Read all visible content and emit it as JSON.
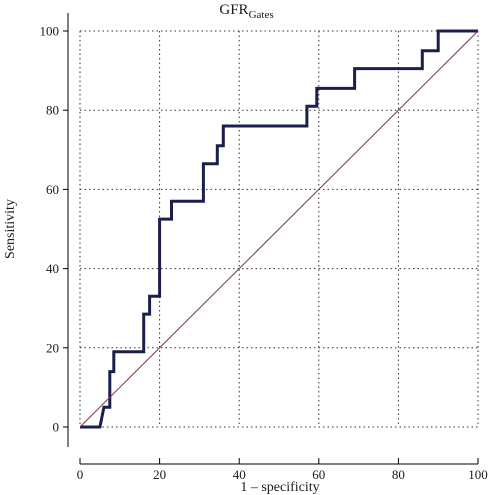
{
  "chart_data": {
    "type": "line",
    "title": "GFR",
    "title_subscript": "Gates",
    "xlabel": "1 – specificity",
    "ylabel": "Sensitivity",
    "xlim": [
      0,
      100
    ],
    "ylim": [
      0,
      100
    ],
    "x_ticks": [
      0,
      20,
      40,
      60,
      80,
      100
    ],
    "y_ticks": [
      0,
      20,
      40,
      60,
      80,
      100
    ],
    "grid": "dotted",
    "colors": {
      "roc": "#1a1f4e",
      "reference": "#7a3b4f",
      "grid": "#333333"
    },
    "series": [
      {
        "type": "step",
        "points": [
          [
            0,
            0
          ],
          [
            5,
            0
          ],
          [
            6,
            5
          ],
          [
            7.5,
            5
          ],
          [
            7.5,
            14
          ],
          [
            8.5,
            14
          ],
          [
            8.5,
            19
          ],
          [
            16,
            19
          ],
          [
            16,
            28.5
          ],
          [
            17.5,
            28.5
          ],
          [
            17.5,
            33
          ],
          [
            20,
            33
          ],
          [
            20,
            52.5
          ],
          [
            23,
            52.5
          ],
          [
            23,
            57
          ],
          [
            31,
            57
          ],
          [
            31,
            66.5
          ],
          [
            34.5,
            66.5
          ],
          [
            34.5,
            71
          ],
          [
            36,
            71
          ],
          [
            36,
            76
          ],
          [
            57,
            76
          ],
          [
            57,
            81
          ],
          [
            59.5,
            81
          ],
          [
            59.5,
            85.5
          ],
          [
            69,
            85.5
          ],
          [
            69,
            90.5
          ],
          [
            86,
            90.5
          ],
          [
            86,
            95
          ],
          [
            90,
            95
          ],
          [
            90,
            100
          ],
          [
            100,
            100
          ]
        ]
      },
      {
        "type": "reference",
        "points": [
          [
            0,
            0
          ],
          [
            100,
            100
          ]
        ]
      }
    ]
  }
}
